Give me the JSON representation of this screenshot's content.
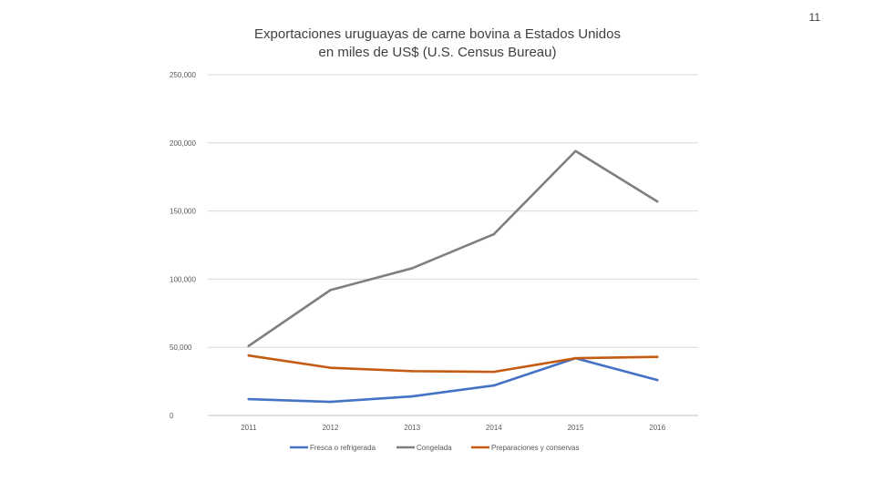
{
  "slide": {
    "number": "11"
  },
  "chart_data": {
    "type": "line",
    "title_line1": "Exportaciones uruguayas de carne bovina a Estados Unidos",
    "title_line2": "en miles de US$ (U.S. Census Bureau)",
    "categories": [
      "2011",
      "2012",
      "2013",
      "2014",
      "2015",
      "2016"
    ],
    "ylim": [
      0,
      250000
    ],
    "yticks": [
      0,
      50000,
      100000,
      150000,
      200000,
      250000
    ],
    "ytick_labels": [
      "0",
      "50,000",
      "100,000",
      "150,000",
      "200,000",
      "250,000"
    ],
    "grid": true,
    "legend_position": "bottom",
    "series": [
      {
        "name": "Fresca o refrigerada",
        "color": "#4472c4",
        "values": [
          12000,
          10000,
          14000,
          22000,
          42000,
          26000
        ]
      },
      {
        "name": "Congelada",
        "color": "#7f7f7f",
        "values": [
          51000,
          92000,
          108000,
          133000,
          194000,
          157000
        ]
      },
      {
        "name": "Preparaciones y conservas",
        "color": "#c55a11",
        "values": [
          44000,
          35000,
          32500,
          32000,
          42000,
          43000
        ]
      }
    ]
  }
}
